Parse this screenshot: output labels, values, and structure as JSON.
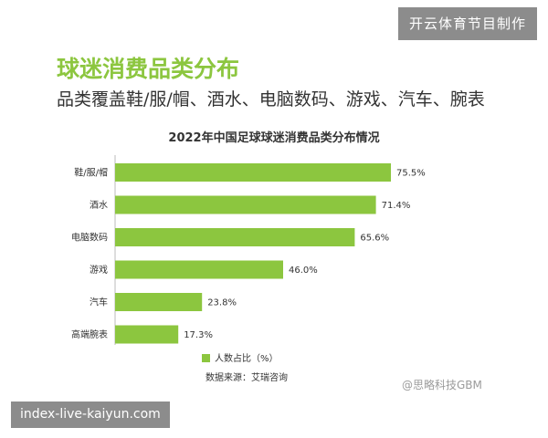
{
  "badges": {
    "top_right": "开云体育节目制作",
    "bottom_left": "index-live-kaiyun.com"
  },
  "header": {
    "title": "球迷消费品类分布",
    "subtitle": "品类覆盖鞋/服/帽、酒水、电脑数码、游戏、汽车、腕表"
  },
  "watermark": "@思略科技GBM",
  "colors": {
    "bar": "#8cc63f",
    "title": "#8cc63f",
    "badge_bg": "#8c8c8c"
  },
  "chart_data": {
    "type": "bar",
    "orientation": "horizontal",
    "title": "2022年中国足球球迷消费品类分布情况",
    "categories": [
      "鞋/服/帽",
      "酒水",
      "电脑数码",
      "游戏",
      "汽车",
      "高端腕表"
    ],
    "series": [
      {
        "name": "人数占比（%）",
        "values": [
          75.5,
          71.4,
          65.6,
          46.0,
          23.8,
          17.3
        ],
        "labels": [
          "75.5%",
          "71.4%",
          "65.6%",
          "46.0%",
          "23.8%",
          "17.3%"
        ]
      }
    ],
    "xlim": [
      0,
      80
    ],
    "grid": false,
    "legend": "bottom",
    "source": "数据来源：艾瑞咨询"
  }
}
